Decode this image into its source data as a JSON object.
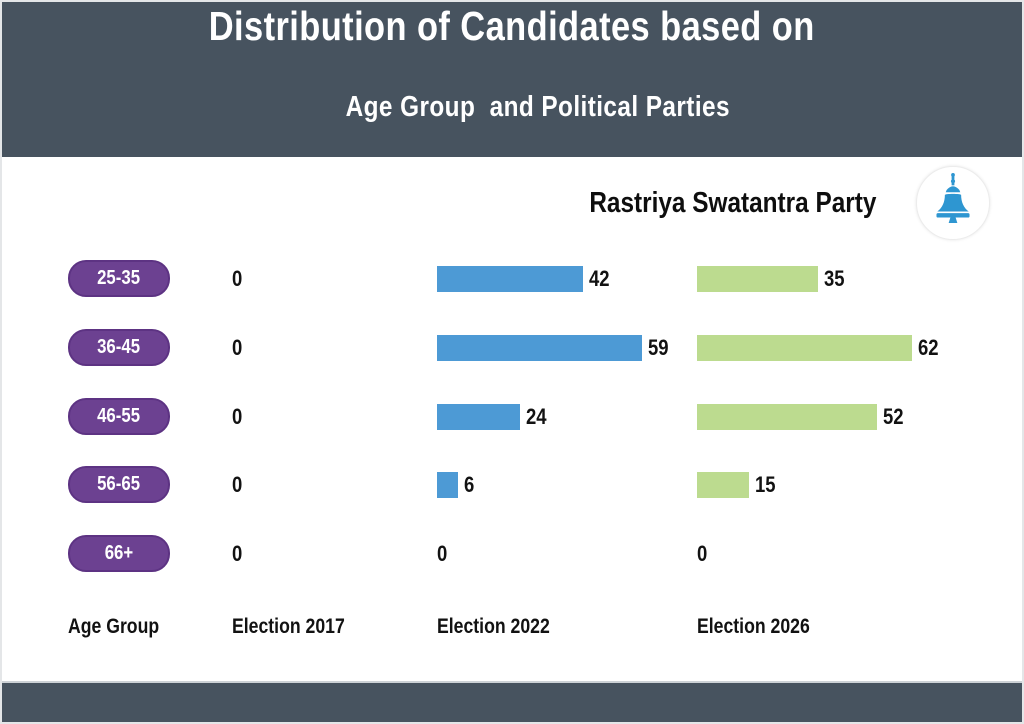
{
  "header": {
    "line1": "Distribution of Candidates based on",
    "line2": "Age Group  and Political Parties"
  },
  "party": {
    "name": "Rastriya Swatantra Party",
    "logo": "bell-icon"
  },
  "column_labels": {
    "age_group": "Age Group",
    "e2017": "Election 2017",
    "e2022": "Election 2022",
    "e2026": "Election 2026"
  },
  "colors": {
    "band_slate": "#47535F",
    "pill_purple": "#6C4191",
    "bar_2022_blue": "#4D9AD5",
    "bar_2026_green": "#BCDB8F",
    "bell_blue": "#2E96D1",
    "text_dark": "#121212",
    "title_white": "#FFFFFF"
  },
  "chart_data": {
    "type": "bar",
    "orientation": "horizontal",
    "title": "Distribution of Candidates based on",
    "subtitle": "Age Group  and Political Parties",
    "legend": "Rastriya Swatantra Party",
    "categories": [
      "25-35",
      "36-45",
      "46-55",
      "56-65",
      "66+"
    ],
    "series": [
      {
        "name": "Election 2017",
        "values": [
          0,
          0,
          0,
          0,
          0
        ],
        "color": "none"
      },
      {
        "name": "Election 2022",
        "values": [
          42,
          59,
          24,
          6,
          0
        ],
        "color": "#4D9AD5"
      },
      {
        "name": "Election 2026",
        "values": [
          35,
          62,
          52,
          15,
          0
        ],
        "color": "#BCDB8F"
      }
    ],
    "value_labels_shown": true,
    "xlim": [
      0,
      70
    ],
    "ylabel": "Age Group",
    "grid": false,
    "legend_position": "top-right"
  }
}
